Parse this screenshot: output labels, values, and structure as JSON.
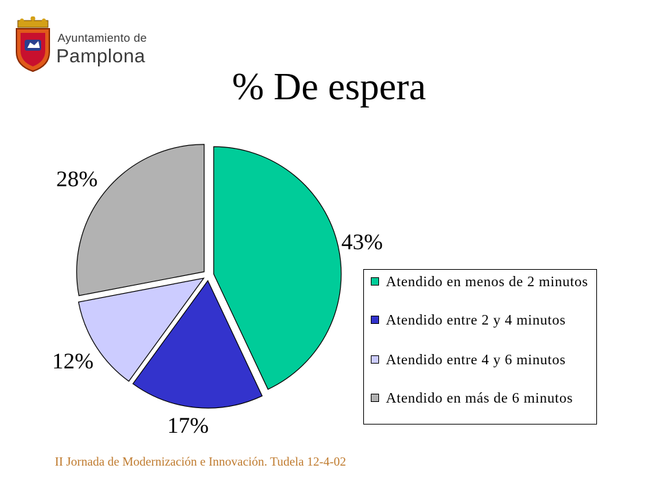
{
  "header": {
    "logo_line1": "Ayuntamiento de",
    "logo_line2": "Pamplona",
    "emblem_icon": "coat-of-arms-icon"
  },
  "slide": {
    "title": "% De espera",
    "footer": "II Jornada de Modernización e Innovación.  Tudela 12-4-02"
  },
  "chart_data": {
    "type": "pie",
    "title": "% De espera",
    "categories": [
      "Atendido en menos de 2 minutos",
      "Atendido entre 2 y 4 minutos",
      "Atendido entre 4 y  6 minutos",
      "Atendido en más de 6 minutos"
    ],
    "values": [
      43,
      17,
      12,
      28
    ],
    "labels": [
      "43%",
      "17%",
      "12%",
      "28%"
    ],
    "colors": [
      "#00cc99",
      "#3333cc",
      "#ccccff",
      "#b2b2b2"
    ],
    "legend_position": "right",
    "exploded": true
  }
}
